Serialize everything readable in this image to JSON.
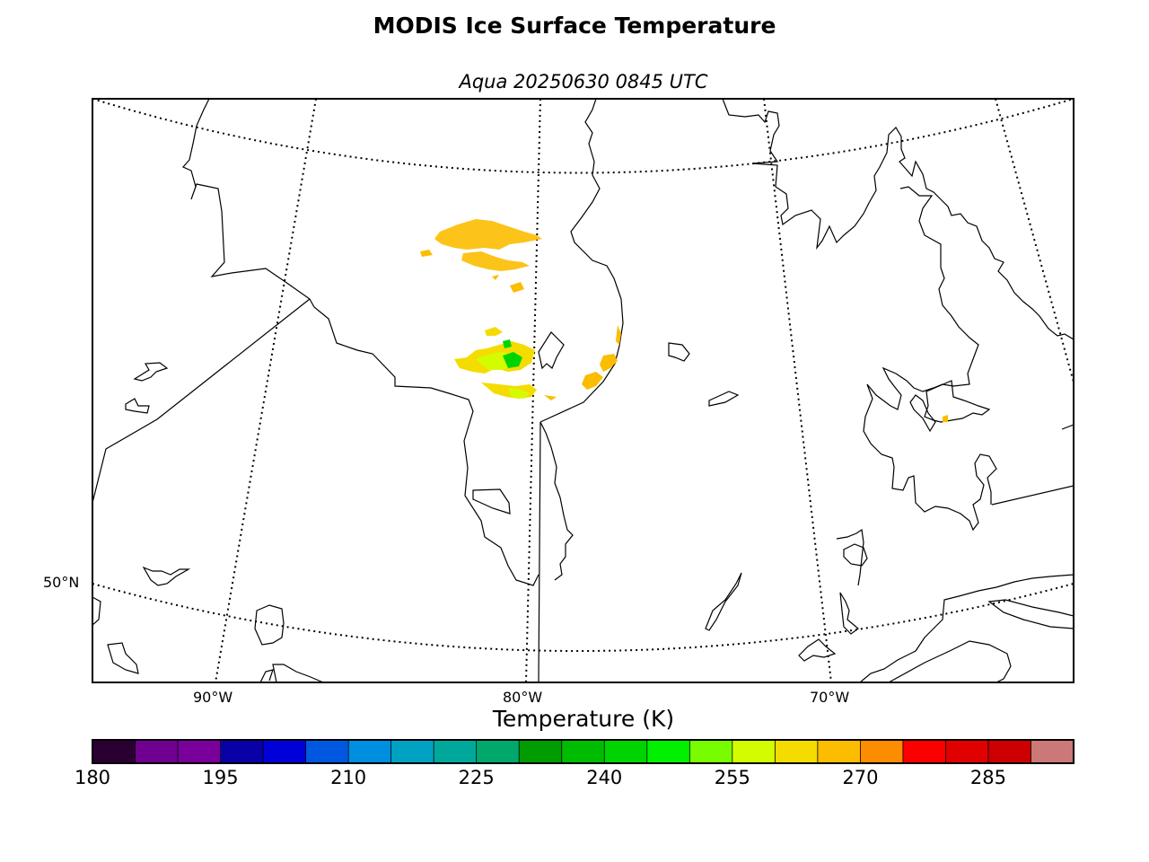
{
  "title": "MODIS Ice Surface Temperature",
  "subtitle": "Aqua 20250630 0845 UTC",
  "map": {
    "region": "Hudson Bay / Quebec",
    "lat_labels": [
      "50°N"
    ],
    "lon_labels": [
      "90°W",
      "80°W",
      "70°W"
    ],
    "graticule_style": "dotted",
    "coastline_color": "#000000"
  },
  "colorbar": {
    "title": "Temperature (K)",
    "min": 180,
    "max": 295,
    "step": 5,
    "tick_labels": [
      "180",
      "195",
      "210",
      "225",
      "240",
      "255",
      "270",
      "285"
    ],
    "colors": [
      "#2a0033",
      "#700090",
      "#7a009c",
      "#0a00a8",
      "#0000d8",
      "#0058e0",
      "#008ee0",
      "#00a2c4",
      "#00a89c",
      "#00a86c",
      "#009c00",
      "#00bc00",
      "#00d400",
      "#00f000",
      "#78fc00",
      "#d4fc00",
      "#f4dc00",
      "#fcbc00",
      "#fc8c00",
      "#fc0000",
      "#e00000",
      "#cc0000",
      "#cc7878"
    ]
  },
  "chart_data": {
    "type": "heatmap",
    "title": "MODIS Ice Surface Temperature",
    "subtitle": "Aqua 20250630 0845 UTC",
    "colorbar_label": "Temperature (K)",
    "range": [
      180,
      295
    ],
    "observed_clusters": [
      {
        "area": "northern Hudson Bay",
        "approx_temp_K": 267
      },
      {
        "area": "central Hudson Bay",
        "approx_temp_K": 257
      },
      {
        "area": "central Hudson Bay core",
        "approx_temp_K": 248
      },
      {
        "area": "eastern Hudson Bay coast",
        "approx_temp_K": 262
      }
    ]
  }
}
